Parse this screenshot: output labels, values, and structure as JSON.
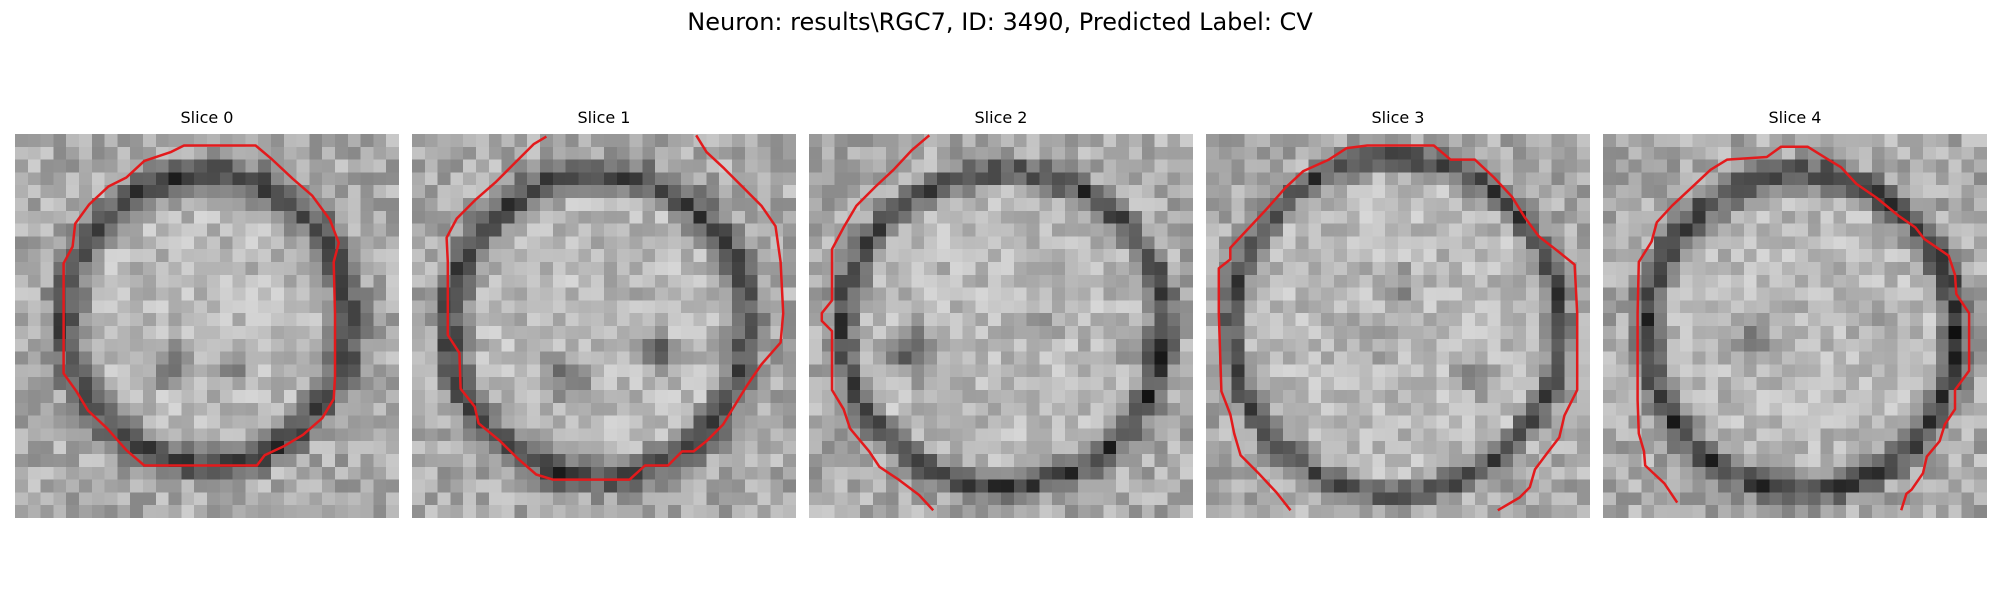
{
  "figure": {
    "title": "Neuron: results\\RGC7, ID: 3490, Predicted Label: CV"
  },
  "panels": [
    {
      "label": "Slice 0"
    },
    {
      "label": "Slice 1"
    },
    {
      "label": "Slice 2"
    },
    {
      "label": "Slice 3"
    },
    {
      "label": "Slice 4"
    }
  ],
  "colors": {
    "contour": "#e31a1c",
    "background": "#ffffff"
  }
}
